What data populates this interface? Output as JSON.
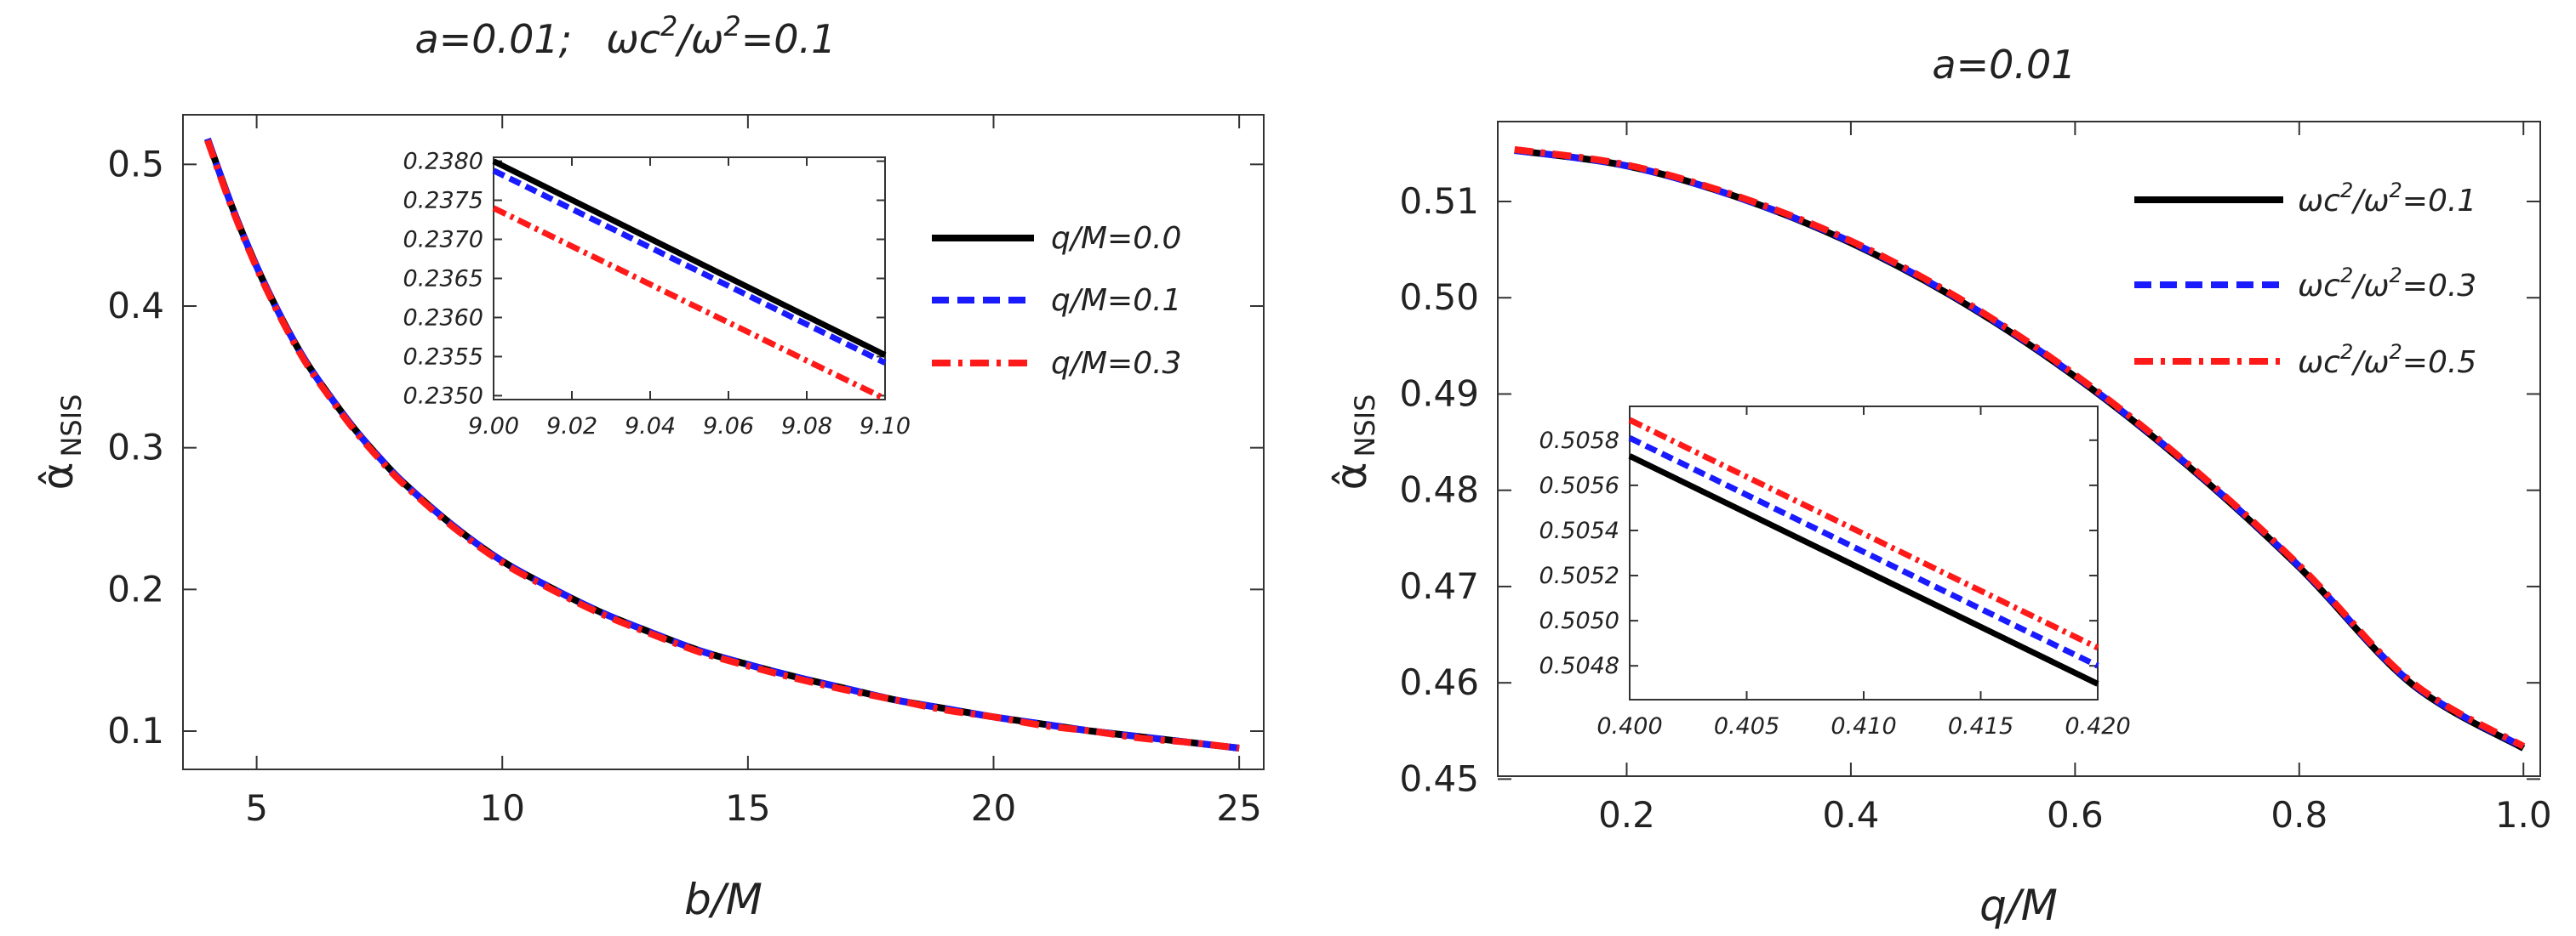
{
  "chart_data": [
    {
      "type": "line",
      "title": "a=0.01;    ωc²/ω² =0.1",
      "title_parts": {
        "param_label": "a=0.01;",
        "ratio_label": "ωc",
        "ratio_sup": "2",
        "ratio_mid": "/ω",
        "ratio_sup2": "2",
        "ratio_tail": "=0.1"
      },
      "xlabel": "b/M",
      "ylabel": "α̂",
      "ylabel_sub": "NSIS",
      "xlim": [
        3.5,
        25.5
      ],
      "ylim": [
        0.073,
        0.535
      ],
      "x_ticks": [
        5,
        10,
        15,
        20,
        25
      ],
      "x_tick_labels": [
        "5",
        "10",
        "15",
        "20",
        "25"
      ],
      "y_ticks": [
        0.1,
        0.2,
        0.3,
        0.4,
        0.5
      ],
      "y_tick_labels": [
        "0.1",
        "0.2",
        "0.3",
        "0.4",
        "0.5"
      ],
      "x": [
        4,
        4.5,
        5,
        5.5,
        6,
        6.5,
        7,
        7.5,
        8,
        9,
        10,
        11,
        12,
        13,
        14,
        15,
        16,
        17,
        18,
        19,
        20,
        21,
        22,
        23,
        24,
        25
      ],
      "series": [
        {
          "name": "q/M=0.0",
          "color": "#000000",
          "dash": "solid",
          "values": [
            0.518,
            0.47,
            0.428,
            0.392,
            0.361,
            0.336,
            0.313,
            0.293,
            0.275,
            0.245,
            0.22,
            0.201,
            0.184,
            0.17,
            0.157,
            0.147,
            0.138,
            0.13,
            0.122,
            0.116,
            0.11,
            0.105,
            0.1,
            0.096,
            0.092,
            0.088
          ]
        },
        {
          "name": "q/M=0.1",
          "color": "#1a1aff",
          "dash": "dashed",
          "values": [
            0.518,
            0.47,
            0.428,
            0.392,
            0.361,
            0.336,
            0.313,
            0.293,
            0.275,
            0.245,
            0.22,
            0.201,
            0.184,
            0.17,
            0.157,
            0.147,
            0.138,
            0.13,
            0.122,
            0.116,
            0.11,
            0.105,
            0.1,
            0.096,
            0.092,
            0.088
          ]
        },
        {
          "name": "q/M=0.3",
          "color": "#ff1a1a",
          "dash": "dashdot",
          "values": [
            0.517,
            0.469,
            0.427,
            0.391,
            0.36,
            0.335,
            0.312,
            0.292,
            0.274,
            0.244,
            0.219,
            0.2,
            0.183,
            0.169,
            0.156,
            0.146,
            0.137,
            0.129,
            0.122,
            0.115,
            0.11,
            0.104,
            0.1,
            0.095,
            0.092,
            0.088
          ]
        }
      ],
      "legend_position": "right, inside plot",
      "inset": {
        "xlim": [
          9.0,
          9.1
        ],
        "ylim": [
          0.23495,
          0.23805
        ],
        "x_ticks": [
          9.0,
          9.02,
          9.04,
          9.06,
          9.08,
          9.1
        ],
        "x_tick_labels": [
          "9.00",
          "9.02",
          "9.04",
          "9.06",
          "9.08",
          "9.10"
        ],
        "y_ticks": [
          0.235,
          0.2355,
          0.236,
          0.2365,
          0.237,
          0.2375,
          0.238
        ],
        "y_tick_labels": [
          "0.2350",
          "0.2355",
          "0.2360",
          "0.2365",
          "0.2370",
          "0.2375",
          "0.2380"
        ],
        "x": [
          9.0,
          9.1
        ],
        "series": [
          {
            "name": "q/M=0.0",
            "values": [
              0.238,
              0.23552
            ]
          },
          {
            "name": "q/M=0.1",
            "values": [
              0.23788,
              0.23542
            ]
          },
          {
            "name": "q/M=0.3",
            "values": [
              0.2374,
              0.23496
            ]
          }
        ]
      }
    },
    {
      "type": "line",
      "title": "a=0.01",
      "xlabel": "q/M",
      "ylabel": "α̂",
      "ylabel_sub": "NSIS",
      "xlim": [
        0.085,
        1.015
      ],
      "ylim": [
        0.4503,
        0.5183
      ],
      "x_ticks": [
        0.2,
        0.4,
        0.6,
        0.8,
        1.0
      ],
      "x_tick_labels": [
        "0.2",
        "0.4",
        "0.6",
        "0.8",
        "1.0"
      ],
      "y_ticks": [
        0.45,
        0.46,
        0.47,
        0.48,
        0.49,
        0.5,
        0.51
      ],
      "y_tick_labels": [
        "0.45",
        "0.46",
        "0.47",
        "0.48",
        "0.49",
        "0.50",
        "0.51"
      ],
      "x": [
        0.1,
        0.2,
        0.3,
        0.4,
        0.5,
        0.6,
        0.7,
        0.8,
        0.9,
        1.0
      ],
      "series": [
        {
          "name": "ωc²/ω² =0.1",
          "color": "#000000",
          "dash": "solid",
          "values": [
            0.5153,
            0.5137,
            0.5104,
            0.5057,
            0.4995,
            0.4918,
            0.4826,
            0.472,
            0.4599,
            0.4532
          ]
        },
        {
          "name": "ωc²/ω² =0.3",
          "color": "#1a1aff",
          "dash": "dashed",
          "values": [
            0.5153,
            0.5137,
            0.5104,
            0.5058,
            0.4996,
            0.4919,
            0.4827,
            0.4721,
            0.46,
            0.4533
          ]
        },
        {
          "name": "ωc²/ω² =0.5",
          "color": "#ff1a1a",
          "dash": "dashdot",
          "values": [
            0.5154,
            0.5138,
            0.5105,
            0.5059,
            0.4997,
            0.492,
            0.4828,
            0.4722,
            0.4601,
            0.4534
          ]
        }
      ],
      "legend_position": "top-right, inside plot",
      "legend_parts": [
        {
          "base": "ωc",
          "sup": "2",
          "mid": "/ω",
          "sup2": "2",
          "tail": "=0.1"
        },
        {
          "base": "ωc",
          "sup": "2",
          "mid": "/ω",
          "sup2": "2",
          "tail": "=0.3"
        },
        {
          "base": "ωc",
          "sup": "2",
          "mid": "/ω",
          "sup2": "2",
          "tail": "=0.5"
        }
      ],
      "inset": {
        "xlim": [
          0.4,
          0.42
        ],
        "ylim": [
          0.50465,
          0.50595
        ],
        "x_ticks": [
          0.4,
          0.405,
          0.41,
          0.415,
          0.42
        ],
        "x_tick_labels": [
          "0.400",
          "0.405",
          "0.410",
          "0.415",
          "0.420"
        ],
        "y_ticks": [
          0.5048,
          0.505,
          0.5052,
          0.5054,
          0.5056,
          0.5058
        ],
        "y_tick_labels": [
          "0.5048",
          "0.5050",
          "0.5052",
          "0.5054",
          "0.5056",
          "0.5058"
        ],
        "x": [
          0.4,
          0.42
        ],
        "series": [
          {
            "name": "ωc²/ω² =0.1",
            "values": [
              0.50573,
              0.50472
            ]
          },
          {
            "name": "ωc²/ω² =0.3",
            "values": [
              0.50581,
              0.5048
            ]
          },
          {
            "name": "ωc²/ω² =0.5",
            "values": [
              0.50589,
              0.50488
            ]
          }
        ]
      }
    }
  ]
}
